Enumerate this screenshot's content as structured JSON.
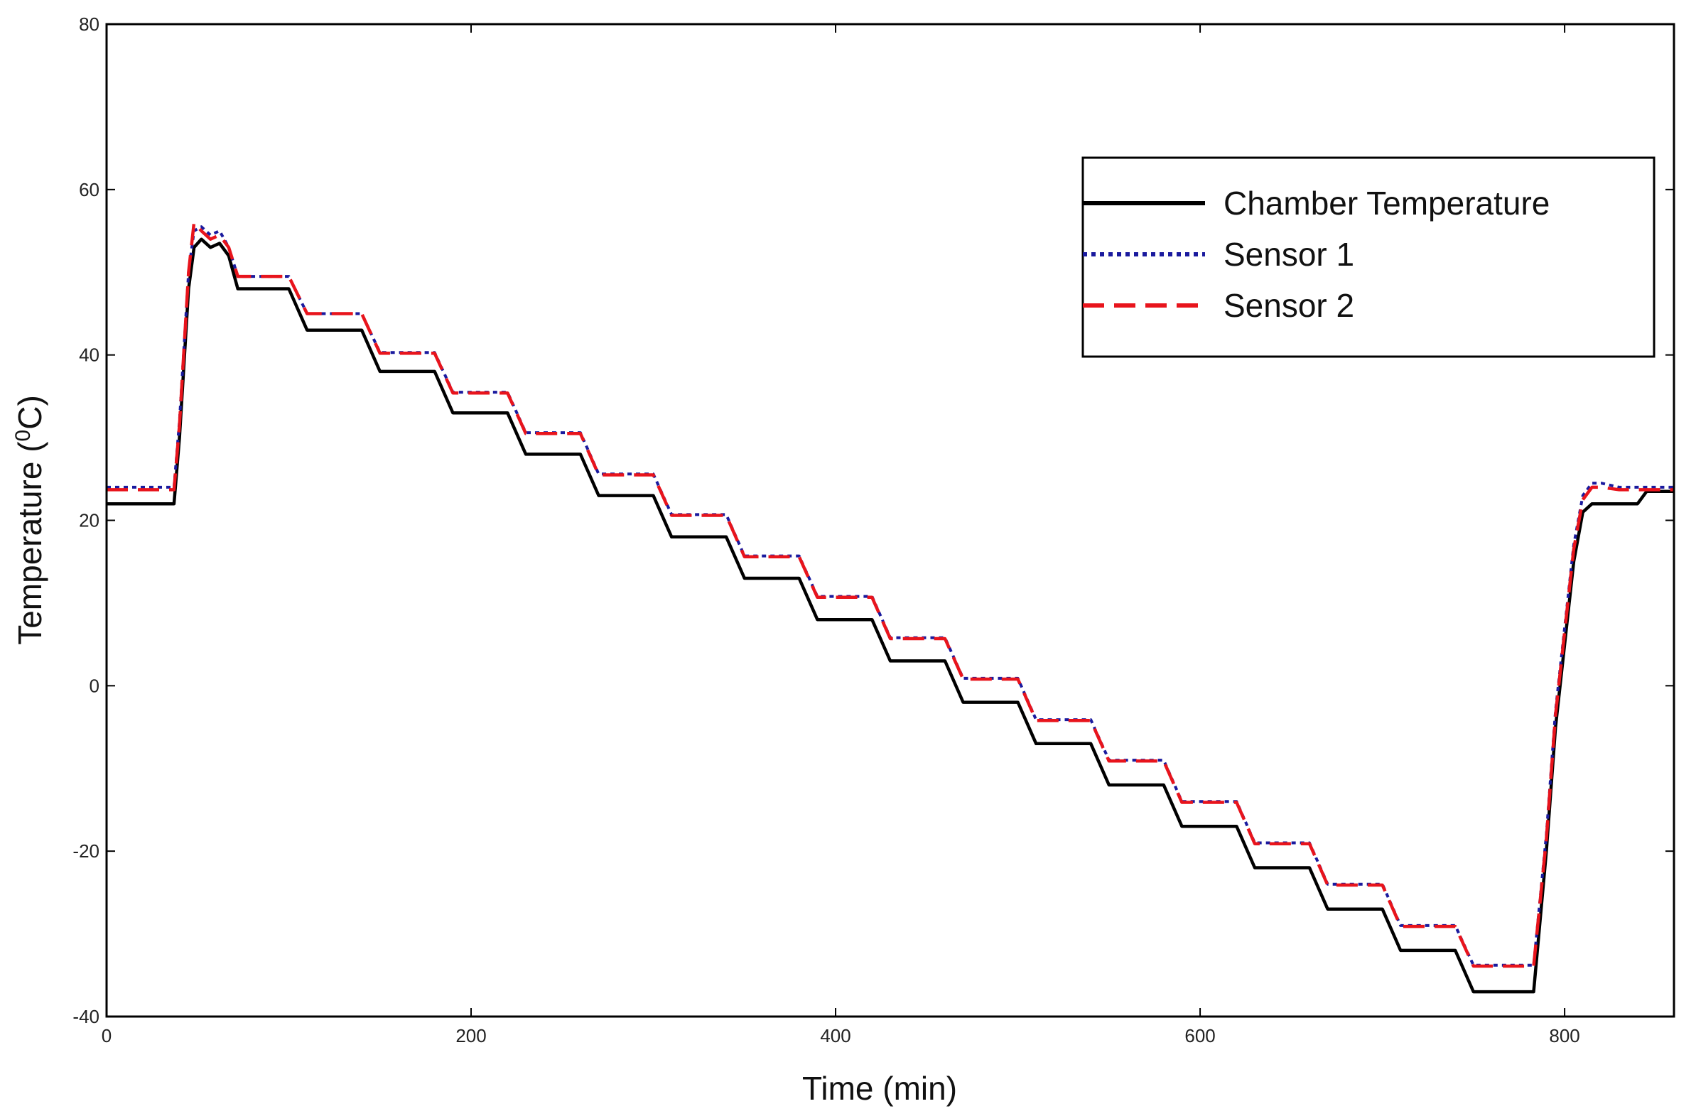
{
  "chart_data": {
    "type": "line",
    "title": "",
    "xlabel": "Time (min)",
    "ylabel_prefix": "Temperature (",
    "ylabel_sup": "0",
    "ylabel_suffix": "C)",
    "xlim": [
      0,
      860
    ],
    "ylim": [
      -40,
      80
    ],
    "x_ticks": [
      0,
      200,
      400,
      600,
      800
    ],
    "y_ticks": [
      -40,
      -20,
      0,
      20,
      40,
      60,
      80
    ],
    "x_tick_labels": [
      "0",
      "200",
      "400",
      "600",
      "800"
    ],
    "y_tick_labels": [
      "-40",
      "-20",
      "0",
      "20",
      "40",
      "60",
      "80"
    ],
    "grid": false,
    "legend_position": "top-right",
    "series": [
      {
        "name": "Chamber Temperature",
        "color": "#000000",
        "style": "solid",
        "x": [
          0,
          37,
          40,
          45,
          48,
          52,
          57,
          62,
          67,
          72,
          100,
          110,
          140,
          150,
          180,
          190,
          220,
          230,
          260,
          270,
          300,
          310,
          340,
          350,
          380,
          390,
          420,
          430,
          460,
          470,
          500,
          510,
          540,
          550,
          580,
          590,
          620,
          630,
          660,
          670,
          700,
          710,
          740,
          750,
          780,
          783,
          790,
          795,
          800,
          805,
          810,
          815,
          820,
          830,
          840,
          845,
          860
        ],
        "y": [
          22,
          22,
          30,
          48,
          53,
          54,
          53,
          53.5,
          52,
          48,
          48,
          43,
          43,
          38,
          38,
          33,
          33,
          28,
          28,
          23,
          23,
          18,
          18,
          13,
          13,
          8,
          8,
          3,
          3,
          -2,
          -2,
          -7,
          -7,
          -12,
          -12,
          -17,
          -17,
          -22,
          -22,
          -27,
          -27,
          -32,
          -32,
          -37,
          -37,
          -37,
          -20,
          -5,
          5,
          15,
          21,
          22,
          22,
          22,
          22,
          23.5,
          23.5
        ]
      },
      {
        "name": "Sensor 1",
        "color": "#1a1a9e",
        "style": "dotted",
        "x": [
          0,
          37,
          40,
          45,
          48,
          52,
          57,
          62,
          67,
          72,
          100,
          110,
          140,
          150,
          180,
          190,
          220,
          230,
          260,
          270,
          300,
          310,
          340,
          350,
          380,
          390,
          420,
          430,
          460,
          470,
          500,
          510,
          540,
          550,
          580,
          590,
          620,
          630,
          660,
          670,
          700,
          710,
          740,
          750,
          780,
          783,
          790,
          795,
          800,
          805,
          810,
          815,
          820,
          830,
          840,
          845,
          860
        ],
        "y": [
          24,
          24,
          32,
          50,
          55,
          55.5,
          54.5,
          55,
          53,
          49.5,
          49.5,
          45,
          45,
          40.3,
          40.3,
          35.5,
          35.5,
          30.6,
          30.6,
          25.6,
          25.6,
          20.7,
          20.7,
          15.7,
          15.7,
          10.8,
          10.8,
          5.8,
          5.8,
          0.9,
          0.9,
          -4.1,
          -4.1,
          -9,
          -9,
          -14,
          -14,
          -19,
          -19,
          -24,
          -24,
          -29,
          -29,
          -33.8,
          -33.8,
          -33.8,
          -18,
          -3,
          7,
          17,
          23,
          24.5,
          24.5,
          24,
          24,
          24,
          24
        ]
      },
      {
        "name": "Sensor 2",
        "color": "#e8141c",
        "style": "dashed",
        "x": [
          0,
          37,
          40,
          45,
          48,
          52,
          57,
          62,
          67,
          72,
          100,
          110,
          140,
          150,
          180,
          190,
          220,
          230,
          260,
          270,
          300,
          310,
          340,
          350,
          380,
          390,
          420,
          430,
          460,
          470,
          500,
          510,
          540,
          550,
          580,
          590,
          620,
          630,
          660,
          670,
          700,
          710,
          740,
          750,
          780,
          783,
          790,
          795,
          800,
          805,
          810,
          815,
          820,
          830,
          840,
          845,
          860
        ],
        "y": [
          23.7,
          23.7,
          31.5,
          50,
          56,
          55,
          54,
          54.5,
          53,
          49.5,
          49.5,
          45,
          45,
          40.2,
          40.2,
          35.4,
          35.4,
          30.5,
          30.5,
          25.5,
          25.5,
          20.6,
          20.6,
          15.6,
          15.6,
          10.7,
          10.7,
          5.7,
          5.7,
          0.8,
          0.8,
          -4.2,
          -4.2,
          -9.1,
          -9.1,
          -14.1,
          -14.1,
          -19.1,
          -19.1,
          -24.1,
          -24.1,
          -29.1,
          -29.1,
          -33.9,
          -33.9,
          -33.9,
          -18.5,
          -3.5,
          6.5,
          16.5,
          22.5,
          24,
          24,
          23.7,
          23.7,
          23.7,
          23.7
        ]
      }
    ]
  }
}
